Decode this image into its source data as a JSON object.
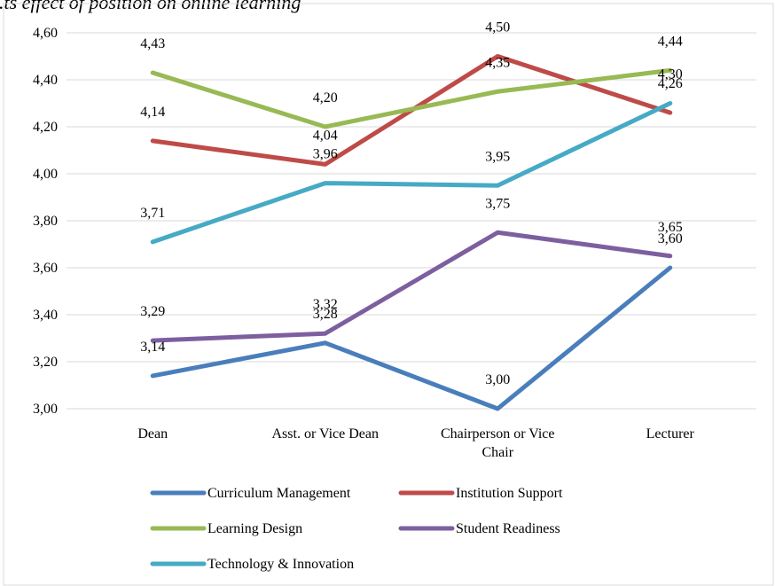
{
  "chart_data": {
    "type": "line",
    "title": "...ts effect of position on online learning",
    "xlabel": "",
    "ylabel": "",
    "categories": [
      "Dean",
      "Asst. or Vice Dean",
      "Chairperson or Vice Chair",
      "Lecturer"
    ],
    "ylim": [
      3.0,
      4.6
    ],
    "y_ticks": [
      "3,00",
      "3,20",
      "3,40",
      "3,60",
      "3,80",
      "4,00",
      "4,20",
      "4,40",
      "4,60"
    ],
    "grid": true,
    "legend_position": "bottom",
    "series": [
      {
        "name": "Curriculum Management",
        "color": "#4a7ebb",
        "values": [
          3.14,
          3.28,
          3.0,
          3.6
        ],
        "labels": [
          "3,14",
          "3,28",
          "3,00",
          "3,60"
        ]
      },
      {
        "name": "Institution Support",
        "color": "#be4b48",
        "values": [
          4.14,
          4.04,
          4.5,
          4.26
        ],
        "labels": [
          "4,14",
          "4,04",
          "4,50",
          "4,26"
        ]
      },
      {
        "name": "Learning Design",
        "color": "#98b954",
        "values": [
          4.43,
          4.2,
          4.35,
          4.44
        ],
        "labels": [
          "4,43",
          "4,20",
          "4,35",
          "4,44"
        ]
      },
      {
        "name": "Student Readiness",
        "color": "#7d5fa0",
        "values": [
          3.29,
          3.32,
          3.75,
          3.65
        ],
        "labels": [
          "3,29",
          "3,32",
          "3,75",
          "3,65"
        ]
      },
      {
        "name": "Technology & Innovation",
        "color": "#46aac5",
        "values": [
          3.71,
          3.96,
          3.95,
          4.3
        ],
        "labels": [
          "3,71",
          "3,96",
          "3,95",
          "4,30"
        ]
      }
    ]
  }
}
